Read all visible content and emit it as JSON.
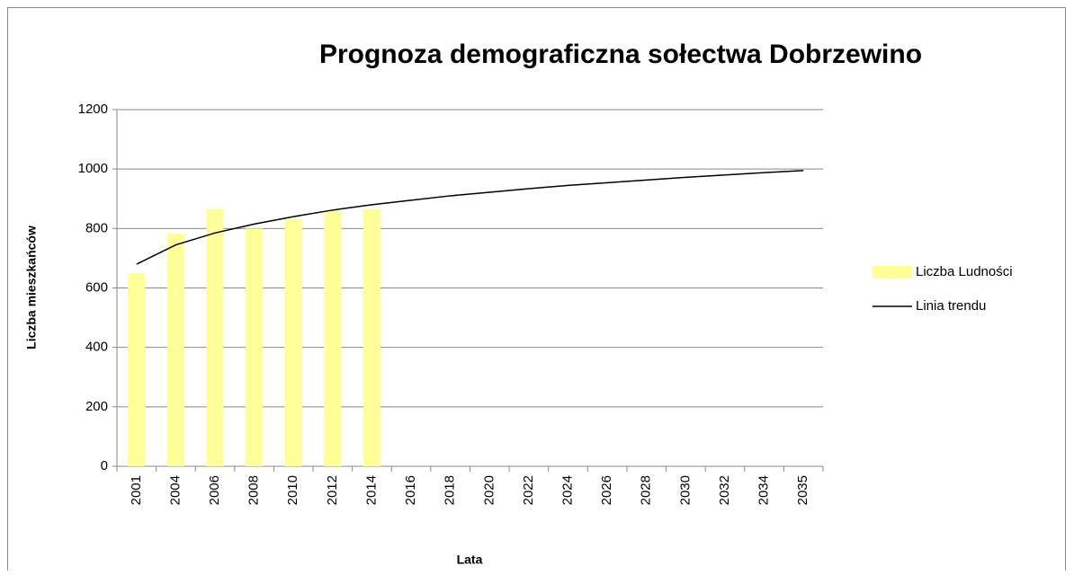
{
  "chart_data": {
    "type": "bar",
    "title": "Prognoza demograficzna sołectwa Dobrzewino",
    "x_label": "Lata",
    "y_label": "Liczba mieszkańców",
    "categories": [
      "2001",
      "2004",
      "2006",
      "2008",
      "2010",
      "2012",
      "2014",
      "2016",
      "2018",
      "2020",
      "2022",
      "2024",
      "2026",
      "2028",
      "2030",
      "2032",
      "2034",
      "2035"
    ],
    "series": [
      {
        "name": "Liczba Ludności",
        "type": "bar",
        "color": "#ffff99",
        "values": [
          650,
          783,
          865,
          800,
          830,
          860,
          865,
          null,
          null,
          null,
          null,
          null,
          null,
          null,
          null,
          null,
          null,
          null
        ]
      },
      {
        "name": "Linia trendu",
        "type": "line",
        "color": "#000000",
        "values": [
          680,
          745,
          785,
          815,
          840,
          862,
          880,
          895,
          910,
          922,
          934,
          945,
          954,
          963,
          972,
          980,
          988,
          995
        ]
      }
    ],
    "ylim": [
      0,
      1200
    ],
    "yticks": [
      0,
      200,
      400,
      600,
      800,
      1000,
      1200
    ],
    "grid": true,
    "legend": "right"
  }
}
